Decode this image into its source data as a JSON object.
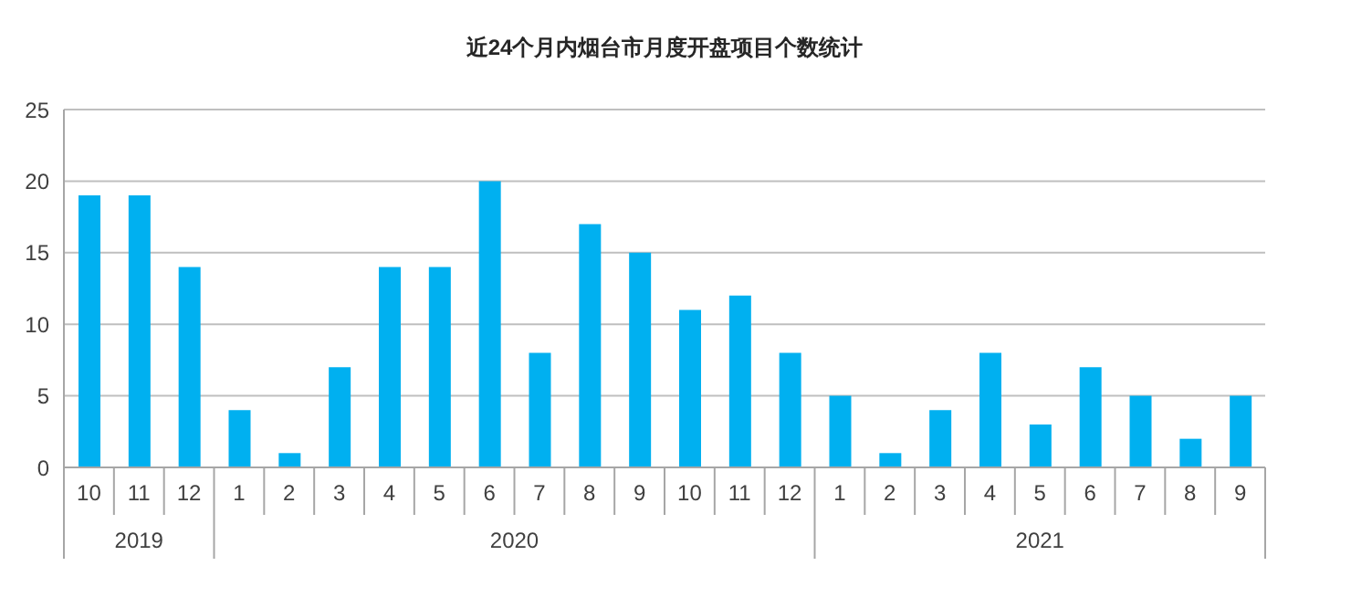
{
  "chart_data": {
    "type": "bar",
    "title": "近24个月内烟台市月度开盘项目个数统计",
    "categories": [
      "10",
      "11",
      "12",
      "1",
      "2",
      "3",
      "4",
      "5",
      "6",
      "7",
      "8",
      "9",
      "10",
      "11",
      "12",
      "1",
      "2",
      "3",
      "4",
      "5",
      "6",
      "7",
      "8",
      "9"
    ],
    "values": [
      19,
      19,
      14,
      4,
      1,
      7,
      14,
      14,
      20,
      8,
      17,
      15,
      11,
      12,
      8,
      5,
      1,
      4,
      8,
      3,
      7,
      5,
      2,
      5
    ],
    "color": "#00b0f0",
    "annotations": [
      "2019",
      "2020",
      "2021"
    ],
    "ylim": [
      0,
      25
    ],
    "yticks": [
      0,
      5,
      10,
      15,
      20,
      25
    ],
    "grid": "y"
  }
}
